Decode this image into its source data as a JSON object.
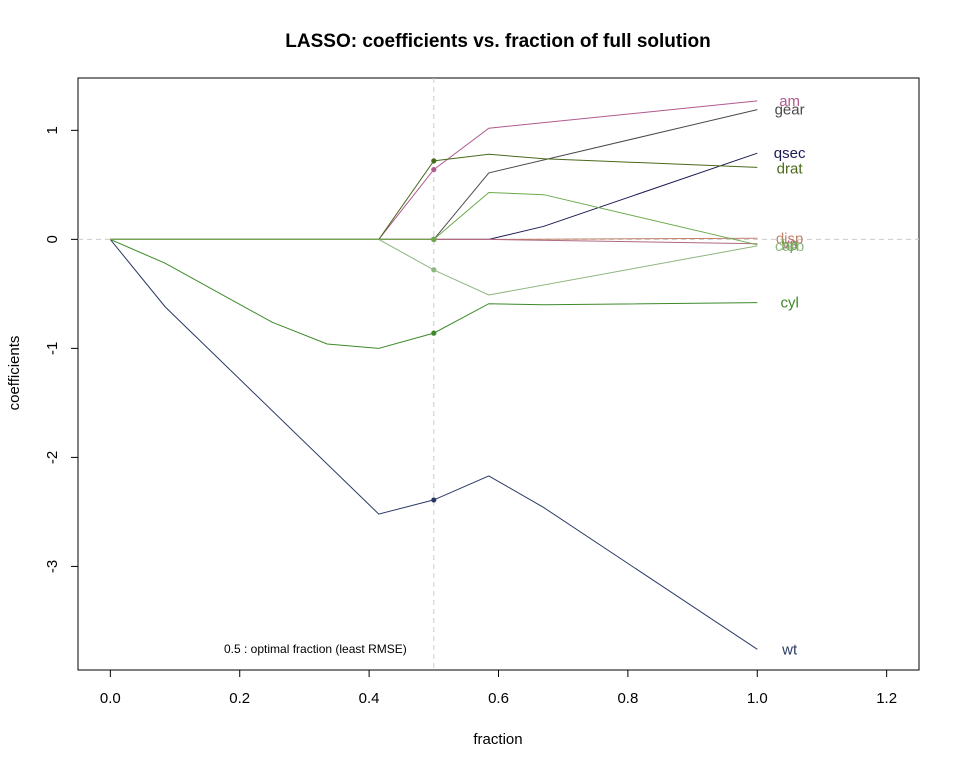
{
  "chart_data": {
    "type": "line",
    "title": "LASSO: coefficients vs. fraction of full solution",
    "xlabel": "fraction",
    "ylabel": "coefficients",
    "xlim": [
      -0.05,
      1.25
    ],
    "ylim": [
      -3.95,
      1.48
    ],
    "xticks": [
      0.0,
      0.2,
      0.4,
      0.6,
      0.8,
      1.0,
      1.2
    ],
    "xtick_labels": [
      "0.0",
      "0.2",
      "0.4",
      "0.6",
      "0.8",
      "1.0",
      "1.2"
    ],
    "yticks": [
      -3,
      -2,
      -1,
      0,
      1
    ],
    "ytick_labels": [
      "-3",
      "-2",
      "-1",
      "0",
      "1"
    ],
    "grid": false,
    "reference_lines": {
      "vertical_x": 0.5,
      "horizontal_y": 0
    },
    "annotation": "0.5 : optimal fraction (least RMSE)",
    "series": [
      {
        "name": "wt",
        "color": "#2a3a66",
        "label_y": -3.76,
        "x": [
          0,
          0.085,
          0.415,
          0.5,
          0.585,
          0.67,
          1.0
        ],
        "y": [
          0,
          -0.62,
          -2.52,
          -2.39,
          -2.17,
          -2.46,
          -3.76
        ],
        "marker_y": -2.39
      },
      {
        "name": "cyl",
        "color": "#3c8a2a",
        "label_y": -0.58,
        "x": [
          0,
          0.085,
          0.25,
          0.335,
          0.415,
          0.5,
          0.585,
          0.67,
          1.0
        ],
        "y": [
          0,
          -0.22,
          -0.76,
          -0.96,
          -1.0,
          -0.86,
          -0.59,
          -0.6,
          -0.58
        ],
        "marker_y": -0.86
      },
      {
        "name": "am",
        "color": "#b05a8e",
        "label_y": 1.27,
        "x": [
          0,
          0.375,
          0.415,
          0.5,
          0.585,
          1.0
        ],
        "y": [
          0,
          0,
          0,
          0.64,
          1.02,
          1.27
        ],
        "marker_y": 0.64
      },
      {
        "name": "gear",
        "color": "#4a4a4a",
        "label_y": 1.19,
        "x": [
          0,
          0.375,
          0.415,
          0.5,
          0.585,
          1.0
        ],
        "y": [
          0,
          0,
          0,
          0,
          0.61,
          1.19
        ],
        "marker_y": 0
      },
      {
        "name": "qsec",
        "color": "#1a1a55",
        "label_y": 0.79,
        "x": [
          0,
          0.375,
          0.415,
          0.5,
          0.585,
          0.67,
          1.0
        ],
        "y": [
          0,
          0,
          0,
          0,
          0,
          0.12,
          0.79
        ],
        "marker_y": 0
      },
      {
        "name": "drat",
        "color": "#4a6a1a",
        "label_y": 0.65,
        "x": [
          0,
          0.375,
          0.415,
          0.5,
          0.585,
          0.67,
          1.0
        ],
        "y": [
          0,
          0,
          0,
          0.72,
          0.78,
          0.74,
          0.66
        ],
        "marker_y": 0.72
      },
      {
        "name": "disp",
        "color": "#c0806a",
        "label_y": 0.01,
        "x": [
          0,
          0.375,
          0.415,
          0.5,
          0.585,
          1.0
        ],
        "y": [
          0,
          0,
          0,
          0,
          0,
          0.01
        ],
        "marker_y": 0
      },
      {
        "name": "vs",
        "color": "#b06a80",
        "label_y": -0.04,
        "x": [
          0,
          0.375,
          0.415,
          0.5,
          0.585,
          1.0
        ],
        "y": [
          0,
          0,
          0,
          0,
          0,
          -0.04
        ],
        "marker_y": 0
      },
      {
        "name": "carb",
        "color": "#8fb580",
        "label_y": -0.06,
        "x": [
          0,
          0.375,
          0.415,
          0.5,
          0.585,
          1.0
        ],
        "y": [
          0,
          0,
          0,
          -0.28,
          -0.51,
          -0.06
        ],
        "marker_y": -0.28
      },
      {
        "name": "hp",
        "color": "#6aaa4a",
        "label_y": -0.05,
        "x": [
          0,
          0.375,
          0.415,
          0.5,
          0.585,
          0.67,
          1.0
        ],
        "y": [
          0,
          0,
          0,
          0,
          0.43,
          0.41,
          -0.05
        ],
        "marker_y": 0
      }
    ]
  }
}
